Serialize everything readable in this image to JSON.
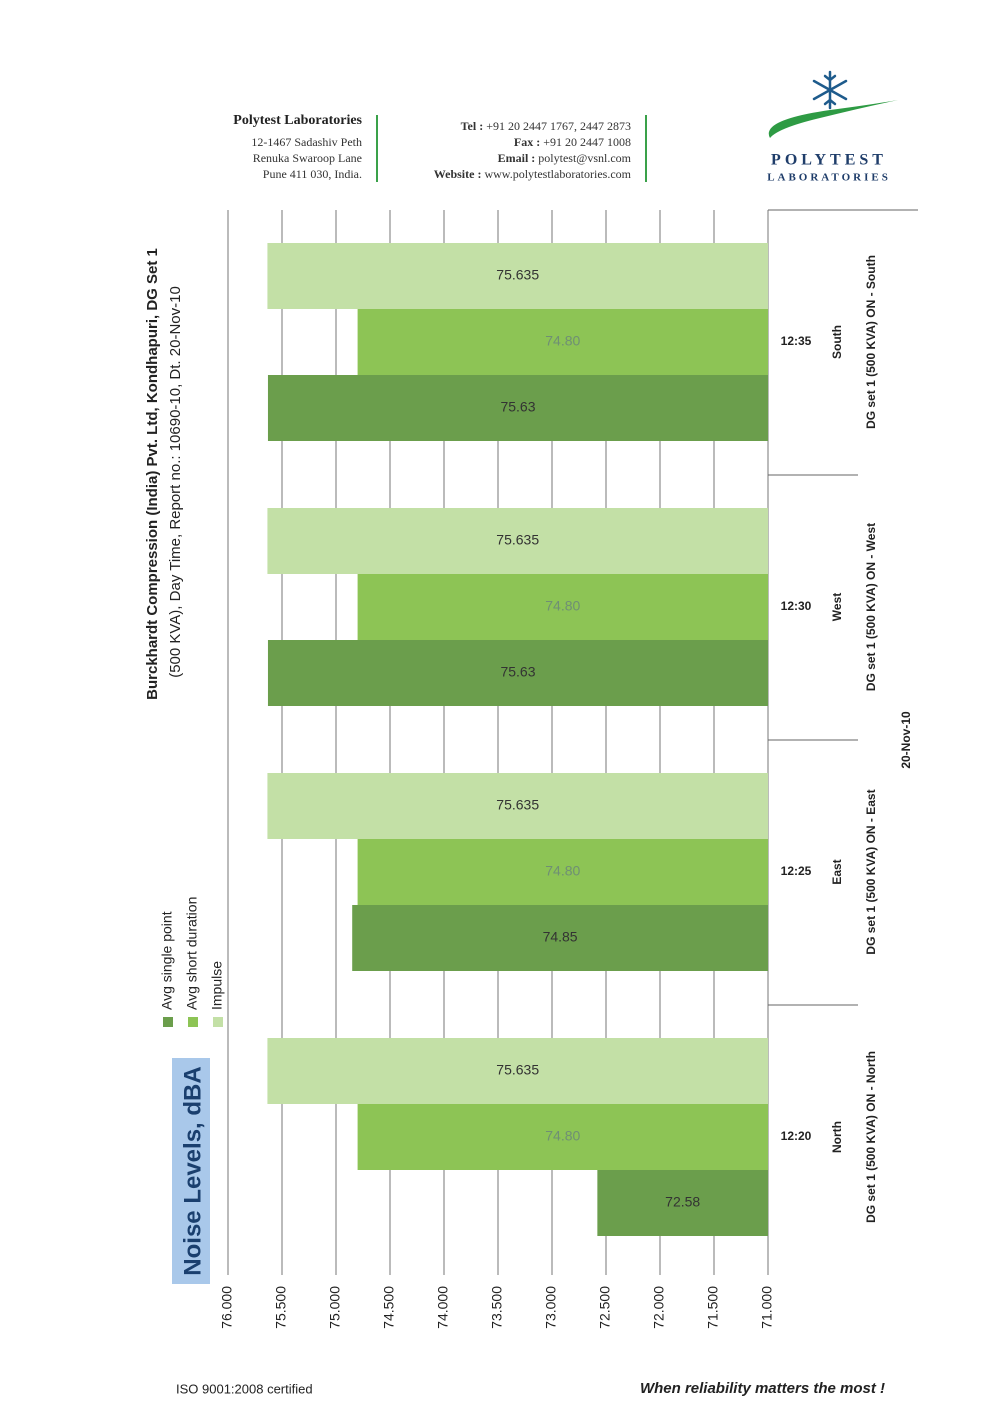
{
  "header": {
    "company": "Polytest Laboratories",
    "address": [
      "12-1467 Sadashiv Peth",
      "Renuka Swaroop Lane",
      "Pune 411 030, India."
    ],
    "contacts": [
      {
        "label": "Tel :",
        "value": "+91 20 2447 1767,  2447 2873"
      },
      {
        "label": "Fax :",
        "value": "+91 20 2447 1008"
      },
      {
        "label": "Email :",
        "value": "polytest@vsnl.com"
      },
      {
        "label": "Website :",
        "value": "www.polytestlaboratories.com"
      }
    ],
    "logo_name": "POLYTEST",
    "logo_sub": "LABORATORIES"
  },
  "chart_data": {
    "type": "bar",
    "orientation": "horizontal",
    "title": [
      "Burckhardt Compression (India) Pvt. Ltd, Kondhapuri, DG Set 1",
      "(500 KVA), Day Time, Report no.: 10690-10, Dt. 20-Nov-10"
    ],
    "value_axis_label": "Noise Levels, dBA",
    "categories": [
      "South",
      "West",
      "East",
      "North"
    ],
    "times": [
      "12:35",
      "12:30",
      "12:25",
      "12:20"
    ],
    "group_labels": [
      "DG set 1 (500 KVA) ON - South",
      "DG set 1 (500 KVA) ON - West",
      "DG set 1 (500 KVA) ON - East",
      "DG set 1 (500 KVA) ON - North"
    ],
    "date": "20-Nov-10",
    "series": [
      {
        "name": "Avg single point",
        "color": "#6b9e4c",
        "values": [
          75.63,
          75.63,
          74.85,
          72.58
        ]
      },
      {
        "name": "Avg short duration",
        "color": "#8dc455",
        "values": [
          74.8,
          74.8,
          74.8,
          74.8
        ],
        "value_labels": [
          "74.80",
          "74.80",
          "74.80",
          "74.80"
        ]
      },
      {
        "name": "Impulse",
        "color": "#c3e0a6",
        "values": [
          75.635,
          75.635,
          75.635,
          75.635
        ]
      }
    ],
    "xlim": [
      76,
      71
    ],
    "xticks": [
      {
        "value": 76,
        "label": "76.000"
      },
      {
        "value": 75.5,
        "label": "75.500"
      },
      {
        "value": 75,
        "label": "75.000"
      },
      {
        "value": 74.5,
        "label": "74.500"
      },
      {
        "value": 74,
        "label": "74.000"
      },
      {
        "value": 73.5,
        "label": "73.500"
      },
      {
        "value": 73,
        "label": "73.000"
      },
      {
        "value": 72.5,
        "label": "72.500"
      },
      {
        "value": 72,
        "label": "72.000"
      },
      {
        "value": 71.5,
        "label": "71.500"
      },
      {
        "value": 71,
        "label": "71.000"
      }
    ],
    "grid": true
  },
  "footer": {
    "left": "ISO 9001:2008 certified",
    "right": "When reliability matters the most !"
  }
}
